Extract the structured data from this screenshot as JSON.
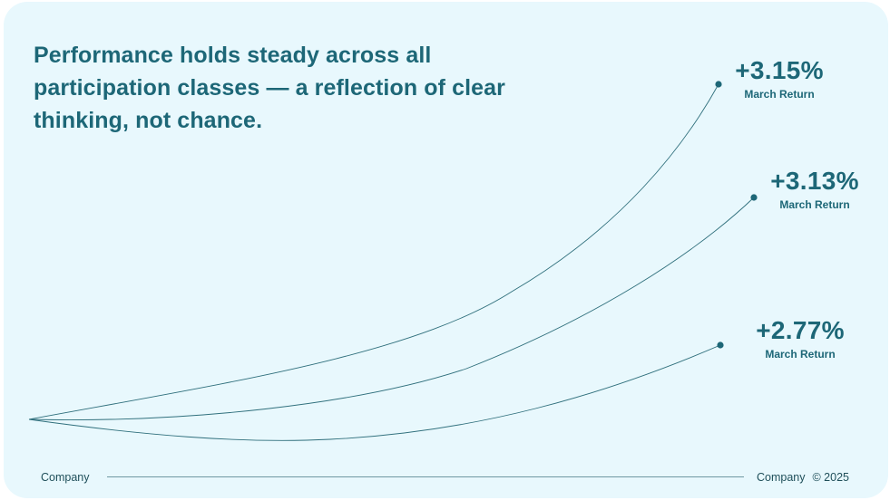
{
  "headline": "Performance holds steady across all participation classes — a reflection of clear thinking, not chance.",
  "colors": {
    "background": "#e8f8fd",
    "accent": "#1d6777",
    "line": "#2f6f7c"
  },
  "callouts": [
    {
      "value": "+3.15%",
      "label": "March Return"
    },
    {
      "value": "+3.13%",
      "label": "March Return"
    },
    {
      "value": "+2.77%",
      "label": "March Return"
    }
  ],
  "footer": {
    "left": "Company",
    "right": "Company",
    "copyright": "© 2025"
  }
}
